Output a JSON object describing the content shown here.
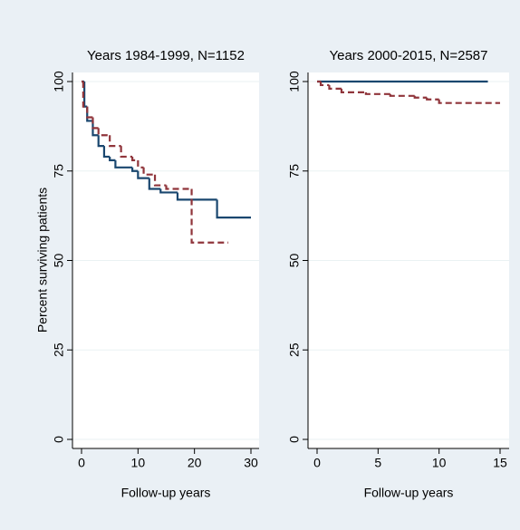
{
  "chart_data": [
    {
      "type": "step",
      "title": "Years 1984-1999, N=1152",
      "ylabel": "Percent surviving patients",
      "xlabel": "Follow-up years",
      "xlim": [
        0,
        30
      ],
      "xticks": [
        0,
        10,
        20,
        30
      ],
      "ylim": [
        0,
        100
      ],
      "yticks": [
        0,
        25,
        50,
        75,
        100
      ],
      "grid": true,
      "series": [
        {
          "color": "#1a476f",
          "dash": false,
          "x": [
            0,
            0.5,
            1,
            2,
            3,
            4,
            5,
            6,
            9,
            10,
            12,
            14,
            17,
            24,
            30
          ],
          "values": [
            100,
            93,
            89,
            85,
            82,
            79,
            78,
            76,
            75,
            73,
            70,
            69,
            67,
            62,
            62
          ]
        },
        {
          "color": "#90353b",
          "dash": true,
          "x": [
            0,
            0.3,
            1,
            2,
            3,
            5,
            7,
            9,
            10,
            11,
            13,
            15,
            19.5,
            26
          ],
          "values": [
            100,
            93,
            90,
            87,
            85,
            82,
            79,
            78,
            76,
            74,
            71,
            70,
            55,
            55
          ]
        }
      ]
    },
    {
      "type": "step",
      "title": "Years 2000-2015, N=2587",
      "xlabel": "Follow-up years",
      "xlim": [
        0,
        15
      ],
      "xticks": [
        0,
        5,
        10,
        15
      ],
      "ylim": [
        0,
        100
      ],
      "yticks": [
        0,
        25,
        50,
        75,
        100
      ],
      "grid": true,
      "series": [
        {
          "color": "#1a476f",
          "dash": false,
          "x": [
            0,
            14
          ],
          "values": [
            100,
            100
          ]
        },
        {
          "color": "#90353b",
          "dash": true,
          "x": [
            0,
            0.3,
            1,
            2,
            4,
            6,
            8,
            9,
            10,
            15
          ],
          "values": [
            100,
            99,
            98,
            97,
            96.5,
            96,
            95.5,
            95,
            94,
            94
          ]
        }
      ]
    }
  ]
}
